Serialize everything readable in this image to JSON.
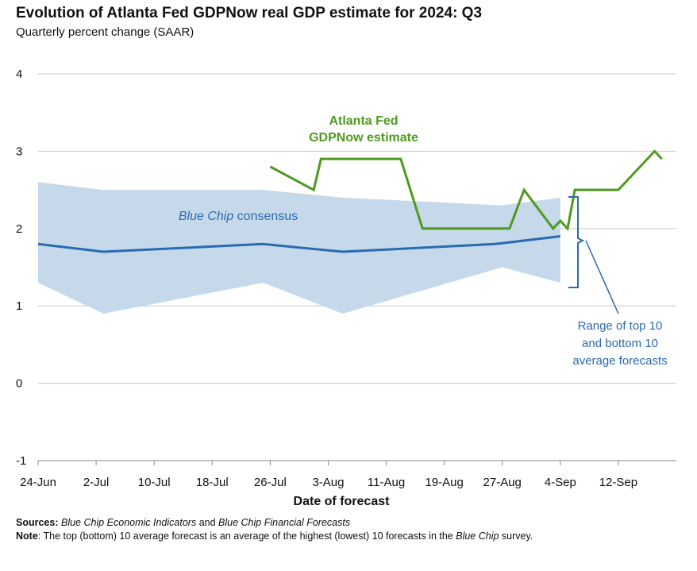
{
  "title": "Evolution of Atlanta Fed GDPNow real GDP estimate for 2024: Q3",
  "subtitle": "Quarterly percent change (SAAR)",
  "xlabel": "Date of forecast",
  "annotations": {
    "gdpnow_line1": "Atlanta Fed",
    "gdpnow_line2": "GDPNow estimate",
    "bluechip_italic": "Blue Chip",
    "bluechip_rest": " consensus",
    "range_line1": "Range of top 10",
    "range_line2": "and bottom 10",
    "range_line3": "average forecasts"
  },
  "notes": {
    "sources_label": "Sources:",
    "sources_part1": "Blue Chip Economic Indicators",
    "sources_part2": " and ",
    "sources_part3": "Blue Chip Financial Forecasts",
    "note_label": "Note",
    "note_part1": ": The top (bottom) 10 average forecast is an average of the highest (lowest) 10 forecasts in the ",
    "note_part2": "Blue Chip",
    "note_part3": " survey."
  },
  "colors": {
    "gdpnow": "#4e9a1e",
    "consensus": "#2a6ab0",
    "range_band": "#c6d9ea",
    "annotation_blue": "#2a6ab0",
    "grid": "#c8c8c8",
    "axis": "#888888"
  },
  "chart_data": {
    "type": "line",
    "x_axis": {
      "type": "date",
      "ticks": [
        "2024-06-24",
        "2024-07-02",
        "2024-07-10",
        "2024-07-18",
        "2024-07-26",
        "2024-08-03",
        "2024-08-11",
        "2024-08-19",
        "2024-08-27",
        "2024-09-04",
        "2024-09-12"
      ],
      "tick_labels": [
        "24-Jun",
        "2-Jul",
        "10-Jul",
        "18-Jul",
        "26-Jul",
        "3-Aug",
        "11-Aug",
        "19-Aug",
        "27-Aug",
        "4-Sep",
        "12-Sep"
      ],
      "range": [
        "2024-06-24",
        "2024-09-20"
      ]
    },
    "y_axis": {
      "ticks": [
        -1,
        0,
        1,
        2,
        3,
        4
      ],
      "ylim": [
        -1,
        4
      ]
    },
    "grid": "horizontal",
    "series": [
      {
        "name": "GDPNow estimate",
        "points": [
          [
            "2024-07-26",
            2.8
          ],
          [
            "2024-08-01",
            2.5
          ],
          [
            "2024-08-02",
            2.9
          ],
          [
            "2024-08-08",
            2.9
          ],
          [
            "2024-08-13",
            2.9
          ],
          [
            "2024-08-16",
            2.0
          ],
          [
            "2024-08-23",
            2.0
          ],
          [
            "2024-08-28",
            2.0
          ],
          [
            "2024-08-30",
            2.5
          ],
          [
            "2024-09-03",
            2.0
          ],
          [
            "2024-09-04",
            2.1
          ],
          [
            "2024-09-05",
            2.0
          ],
          [
            "2024-09-06",
            2.5
          ],
          [
            "2024-09-09",
            2.5
          ],
          [
            "2024-09-12",
            2.5
          ],
          [
            "2024-09-17",
            3.0
          ],
          [
            "2024-09-18",
            2.9
          ]
        ]
      },
      {
        "name": "Blue Chip consensus",
        "points": [
          [
            "2024-06-24",
            1.8
          ],
          [
            "2024-07-03",
            1.7
          ],
          [
            "2024-07-25",
            1.8
          ],
          [
            "2024-08-05",
            1.7
          ],
          [
            "2024-08-26",
            1.8
          ],
          [
            "2024-09-04",
            1.9
          ]
        ]
      },
      {
        "name": "Range of top 10 and bottom 10 average forecasts",
        "type": "band",
        "points": [
          [
            "2024-06-24",
            1.3,
            2.6
          ],
          [
            "2024-07-03",
            0.9,
            2.5
          ],
          [
            "2024-07-25",
            1.3,
            2.5
          ],
          [
            "2024-08-05",
            0.9,
            2.4
          ],
          [
            "2024-08-27",
            1.5,
            2.3
          ],
          [
            "2024-09-04",
            1.3,
            2.4
          ]
        ]
      }
    ]
  }
}
